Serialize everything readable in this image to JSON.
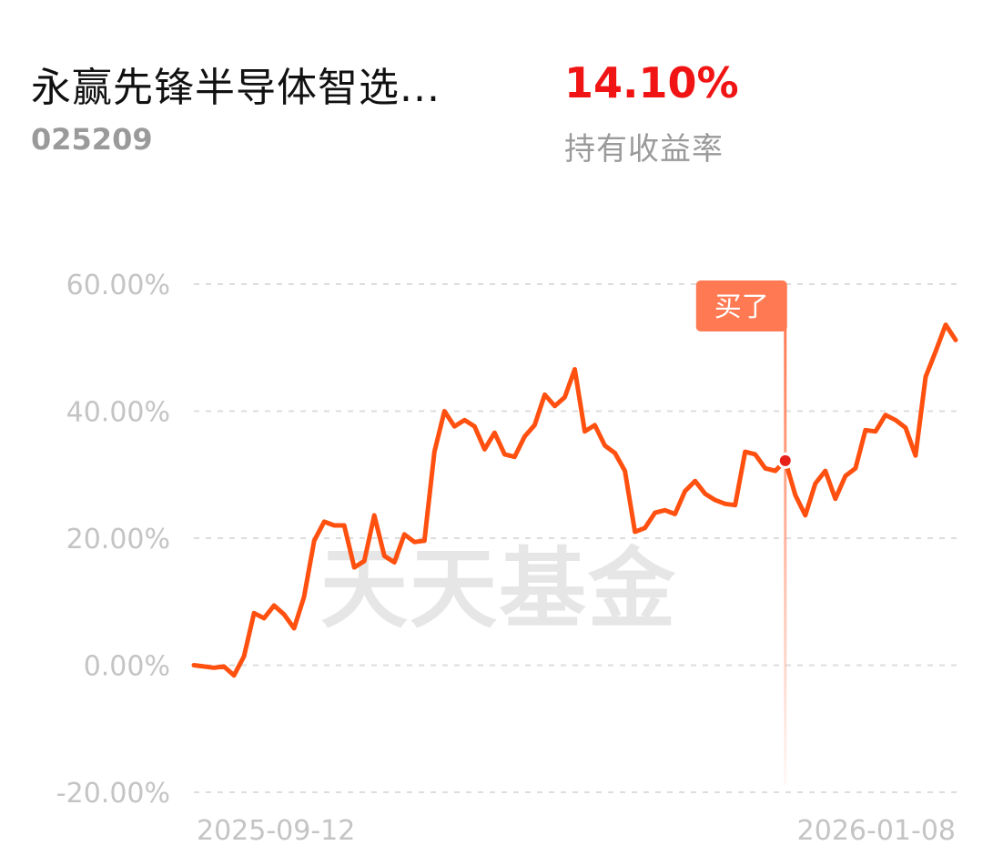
{
  "header": {
    "fund_name": "永赢先锋半导体智选...",
    "fund_code": "025209",
    "return_value": "14.10%",
    "return_label": "持有收益率"
  },
  "watermark": "天天基金",
  "colors": {
    "line": "#ff5010",
    "marker": "#ff7a52",
    "return_red": "#f01414",
    "grid": "#dddddd"
  },
  "chart_data": {
    "type": "line",
    "title": "",
    "xlabel": "",
    "ylabel": "",
    "ylim": [
      -20,
      60
    ],
    "y_ticks": [
      {
        "value": 60,
        "label": "60.00%"
      },
      {
        "value": 40,
        "label": "40.00%"
      },
      {
        "value": 20,
        "label": "20.00%"
      },
      {
        "value": 0,
        "label": "0.00%"
      },
      {
        "value": -20,
        "label": "-20.00%"
      }
    ],
    "x_tick_labels": [
      "2025-09-12",
      "2026-01-08"
    ],
    "grid": "horizontal dashed",
    "values": [
      0,
      -0.2,
      -0.4,
      -0.2,
      -1.6,
      1.4,
      8.2,
      7.4,
      9.4,
      8.0,
      5.8,
      10.8,
      19.6,
      22.6,
      22.0,
      22.0,
      15.4,
      16.4,
      23.6,
      17.2,
      16.2,
      20.6,
      19.4,
      19.6,
      33.6,
      40.0,
      37.6,
      38.6,
      37.6,
      34.0,
      36.6,
      33.2,
      32.8,
      36.0,
      37.8,
      42.6,
      40.8,
      42.2,
      46.6,
      36.8,
      37.8,
      34.6,
      33.4,
      30.6,
      21.0,
      21.6,
      24.0,
      24.4,
      23.8,
      27.4,
      29.0,
      27.0,
      26.0,
      25.4,
      25.2,
      33.6,
      33.2,
      31.0,
      30.6,
      32.2,
      26.8,
      23.6,
      28.6,
      30.6,
      26.2,
      29.8,
      31.0,
      37.0,
      36.8,
      39.4,
      38.6,
      37.4,
      33.0,
      45.4,
      49.4,
      53.6,
      51.2
    ],
    "annotation": {
      "label": "买了",
      "index": 59,
      "value": 32.2
    }
  }
}
